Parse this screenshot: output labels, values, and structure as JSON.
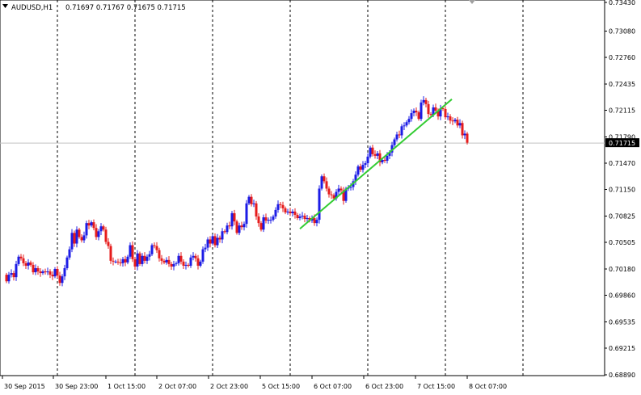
{
  "header": {
    "symbol": "AUDUSD,H1",
    "ohlc": "0.71697 0.71767 0.71675 0.71715",
    "dropdown_icon": "triangle-down-icon"
  },
  "price_tag": "0.71715",
  "colors": {
    "bull_candle": "#1c1ce6",
    "bear_candle": "#e61c1c",
    "trendline": "#33cc33",
    "grid": "#000000",
    "current_price_line": "#c0c0c0",
    "price_tag_bg": "#000000",
    "price_tag_text": "#ffffff"
  },
  "chart_data": {
    "type": "candlestick",
    "symbol": "AUDUSD",
    "timeframe": "H1",
    "current_price": 0.71715,
    "y_ticks": [
      0.7343,
      0.7308,
      0.7276,
      0.72435,
      0.72115,
      0.7179,
      0.7147,
      0.7115,
      0.70825,
      0.70505,
      0.7018,
      0.6986,
      0.69535,
      0.69215,
      0.6889
    ],
    "ylim": [
      0.6888,
      0.7343
    ],
    "x_ticks": [
      "30 Sep 2015",
      "30 Sep 23:00",
      "1 Oct 15:00",
      "2 Oct 07:00",
      "2 Oct 23:00",
      "5 Oct 15:00",
      "6 Oct 07:00",
      "6 Oct 23:00",
      "7 Oct 15:00",
      "8 Oct 07:00"
    ],
    "grid": "vertical dashed",
    "trendline": {
      "start": [
        0.7067
      ],
      "end": [
        0.7225
      ]
    },
    "closes": [
      0.7003,
      0.7011,
      0.7013,
      0.7008,
      0.7024,
      0.7033,
      0.7031,
      0.7025,
      0.7022,
      0.7026,
      0.7023,
      0.7014,
      0.7019,
      0.7015,
      0.7013,
      0.7015,
      0.7014,
      0.7015,
      0.7011,
      0.7009,
      0.7018,
      0.701,
      0.7001,
      0.7009,
      0.7019,
      0.7032,
      0.7042,
      0.7062,
      0.7049,
      0.7066,
      0.7057,
      0.7053,
      0.7059,
      0.7074,
      0.7071,
      0.7075,
      0.7068,
      0.7057,
      0.7064,
      0.707,
      0.7066,
      0.7051,
      0.7046,
      0.7028,
      0.7027,
      0.7027,
      0.7026,
      0.7025,
      0.703,
      0.7026,
      0.7033,
      0.7047,
      0.703,
      0.7021,
      0.7037,
      0.7024,
      0.7034,
      0.7028,
      0.7033,
      0.7036,
      0.7047,
      0.7046,
      0.7041,
      0.7031,
      0.7028,
      0.7026,
      0.7029,
      0.7024,
      0.7021,
      0.7024,
      0.7025,
      0.7034,
      0.7027,
      0.7022,
      0.7023,
      0.7022,
      0.7032,
      0.7034,
      0.7031,
      0.7022,
      0.7027,
      0.7042,
      0.7044,
      0.7054,
      0.7049,
      0.7058,
      0.7047,
      0.7056,
      0.7054,
      0.7064,
      0.7063,
      0.7071,
      0.707,
      0.7086,
      0.7076,
      0.7062,
      0.7071,
      0.7069,
      0.7073,
      0.7098,
      0.7106,
      0.7097,
      0.7098,
      0.7082,
      0.7074,
      0.7066,
      0.7081,
      0.7077,
      0.7078,
      0.7078,
      0.7082,
      0.709,
      0.7097,
      0.7096,
      0.7092,
      0.7087,
      0.7088,
      0.7086,
      0.7088,
      0.7084,
      0.708,
      0.7082,
      0.7083,
      0.7079,
      0.708,
      0.7077,
      0.708,
      0.7074,
      0.7078,
      0.7116,
      0.7131,
      0.7125,
      0.7116,
      0.7109,
      0.7108,
      0.7104,
      0.7112,
      0.7116,
      0.7114,
      0.7101,
      0.7116,
      0.7117,
      0.7118,
      0.7125,
      0.7133,
      0.7143,
      0.7139,
      0.7145,
      0.7147,
      0.7155,
      0.7166,
      0.7158,
      0.7156,
      0.7159,
      0.7148,
      0.7151,
      0.715,
      0.7156,
      0.716,
      0.7169,
      0.7176,
      0.7182,
      0.7181,
      0.7192,
      0.7193,
      0.7197,
      0.7201,
      0.7208,
      0.7211,
      0.7209,
      0.7201,
      0.7221,
      0.7224,
      0.7219,
      0.7207,
      0.7206,
      0.7215,
      0.7211,
      0.7204,
      0.7214,
      0.7213,
      0.7203,
      0.7204,
      0.7199,
      0.7198,
      0.72,
      0.7193,
      0.7196,
      0.7181,
      0.7183,
      0.7172
    ]
  }
}
